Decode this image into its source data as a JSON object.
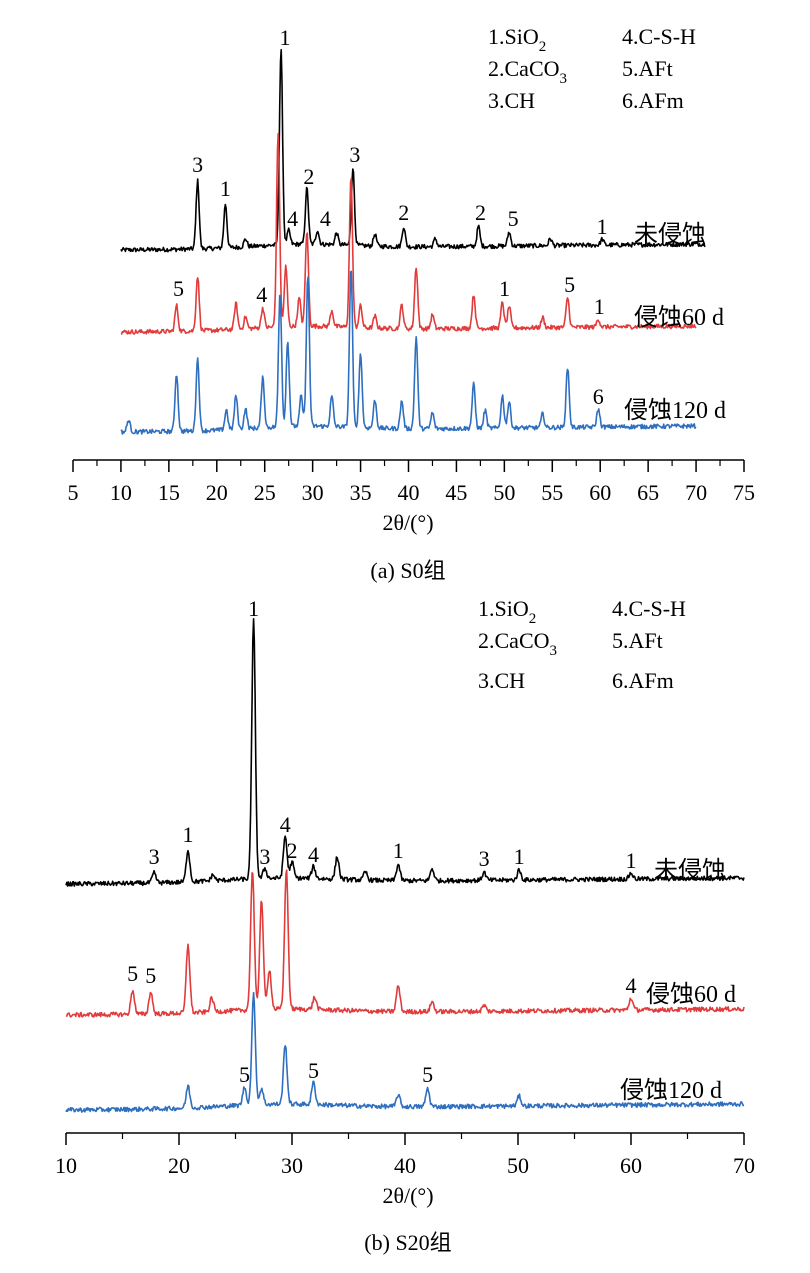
{
  "chart_data": [
    {
      "type": "line",
      "caption": "(a) S0组",
      "xlabel": "2θ/(°)",
      "xlim": [
        5,
        75
      ],
      "xticks": [
        5,
        10,
        15,
        20,
        25,
        30,
        35,
        40,
        45,
        50,
        55,
        60,
        65,
        70,
        75
      ],
      "legend": [
        "1.SiO2",
        "2.CaCO3",
        "3.CH",
        "4.C-S-H",
        "5.AFt",
        "6.AFm"
      ],
      "series": [
        {
          "name": "未侵蚀",
          "color": "#000000",
          "x_range": [
            10,
            71
          ],
          "peaks": [
            {
              "x": 18.0,
              "h": 68,
              "label": "3"
            },
            {
              "x": 20.9,
              "h": 44,
              "label": "1"
            },
            {
              "x": 23.0,
              "h": 8
            },
            {
              "x": 26.7,
              "h": 195,
              "label": "1"
            },
            {
              "x": 27.5,
              "h": 14,
              "label": "4"
            },
            {
              "x": 29.4,
              "h": 56,
              "label": "2"
            },
            {
              "x": 30.5,
              "h": 14,
              "label": "4"
            },
            {
              "x": 32.5,
              "h": 12
            },
            {
              "x": 34.2,
              "h": 78,
              "label": "3"
            },
            {
              "x": 36.5,
              "h": 12
            },
            {
              "x": 39.5,
              "h": 20,
              "label": "2"
            },
            {
              "x": 42.8,
              "h": 8
            },
            {
              "x": 47.3,
              "h": 20,
              "label": "2"
            },
            {
              "x": 50.5,
              "h": 14,
              "label": "5"
            },
            {
              "x": 54.8,
              "h": 7
            },
            {
              "x": 60.2,
              "h": 6,
              "label": "1"
            }
          ]
        },
        {
          "name": "侵蚀60 d",
          "color": "#e03c3c",
          "x_range": [
            10,
            70
          ],
          "peaks": [
            {
              "x": 15.8,
              "h": 26,
              "label": "5"
            },
            {
              "x": 18.0,
              "h": 55
            },
            {
              "x": 22.0,
              "h": 26
            },
            {
              "x": 23.0,
              "h": 12
            },
            {
              "x": 24.8,
              "h": 20,
              "label": "4"
            },
            {
              "x": 26.4,
              "h": 195
            },
            {
              "x": 27.2,
              "h": 60
            },
            {
              "x": 28.6,
              "h": 28
            },
            {
              "x": 29.4,
              "h": 95
            },
            {
              "x": 32.0,
              "h": 16
            },
            {
              "x": 34.0,
              "h": 150
            },
            {
              "x": 35.0,
              "h": 22
            },
            {
              "x": 36.5,
              "h": 12
            },
            {
              "x": 39.3,
              "h": 24
            },
            {
              "x": 40.8,
              "h": 62
            },
            {
              "x": 42.5,
              "h": 14
            },
            {
              "x": 46.8,
              "h": 34
            },
            {
              "x": 49.8,
              "h": 26,
              "label": "1"
            },
            {
              "x": 50.5,
              "h": 22
            },
            {
              "x": 54.0,
              "h": 10
            },
            {
              "x": 56.6,
              "h": 30,
              "label": "5"
            },
            {
              "x": 59.8,
              "h": 8,
              "label": "1"
            }
          ]
        },
        {
          "name": "侵蚀120 d",
          "color": "#2f6fbf",
          "x_range": [
            10,
            70
          ],
          "peaks": [
            {
              "x": 10.8,
              "h": 12
            },
            {
              "x": 15.8,
              "h": 58
            },
            {
              "x": 18.0,
              "h": 72
            },
            {
              "x": 21.0,
              "h": 20
            },
            {
              "x": 22.0,
              "h": 34
            },
            {
              "x": 23.0,
              "h": 20
            },
            {
              "x": 24.8,
              "h": 50
            },
            {
              "x": 26.6,
              "h": 135
            },
            {
              "x": 27.4,
              "h": 85
            },
            {
              "x": 28.8,
              "h": 30
            },
            {
              "x": 29.5,
              "h": 150
            },
            {
              "x": 32.0,
              "h": 30
            },
            {
              "x": 34.0,
              "h": 160
            },
            {
              "x": 35.0,
              "h": 75
            },
            {
              "x": 36.5,
              "h": 28
            },
            {
              "x": 39.3,
              "h": 28
            },
            {
              "x": 40.8,
              "h": 92
            },
            {
              "x": 42.5,
              "h": 16
            },
            {
              "x": 46.8,
              "h": 44
            },
            {
              "x": 48.0,
              "h": 18
            },
            {
              "x": 49.8,
              "h": 32
            },
            {
              "x": 50.5,
              "h": 26
            },
            {
              "x": 54.0,
              "h": 14
            },
            {
              "x": 56.6,
              "h": 60
            },
            {
              "x": 59.8,
              "h": 18,
              "label": "6"
            }
          ]
        }
      ]
    },
    {
      "type": "line",
      "caption": "(b) S20组",
      "xlabel": "2θ/(°)",
      "xlim": [
        10,
        70
      ],
      "xticks": [
        10,
        20,
        30,
        40,
        50,
        60,
        70
      ],
      "legend": [
        "1.SiO2",
        "2.CaCO3",
        "3.CH",
        "4.C-S-H",
        "5.AFt",
        "6.AFm"
      ],
      "series": [
        {
          "name": "未侵蚀",
          "color": "#000000",
          "x_range": [
            10,
            70
          ],
          "peaks": [
            {
              "x": 17.8,
              "h": 10,
              "label": "3"
            },
            {
              "x": 20.8,
              "h": 32,
              "label": "1"
            },
            {
              "x": 23.0,
              "h": 6
            },
            {
              "x": 26.6,
              "h": 258,
              "label": "1"
            },
            {
              "x": 27.6,
              "h": 10,
              "label": "3"
            },
            {
              "x": 29.4,
              "h": 42,
              "label": "4"
            },
            {
              "x": 30.0,
              "h": 16,
              "label": "2"
            },
            {
              "x": 31.9,
              "h": 12,
              "label": "4"
            },
            {
              "x": 34.0,
              "h": 22
            },
            {
              "x": 36.5,
              "h": 8
            },
            {
              "x": 39.4,
              "h": 16,
              "label": "1"
            },
            {
              "x": 42.4,
              "h": 12
            },
            {
              "x": 47.0,
              "h": 8,
              "label": "3"
            },
            {
              "x": 50.1,
              "h": 10,
              "label": "1"
            },
            {
              "x": 60.0,
              "h": 6,
              "label": "1"
            }
          ]
        },
        {
          "name": "侵蚀60 d",
          "color": "#e03c3c",
          "x_range": [
            10,
            70
          ],
          "peaks": [
            {
              "x": 15.9,
              "h": 24,
              "label": "5"
            },
            {
              "x": 17.5,
              "h": 22,
              "label": "5"
            },
            {
              "x": 20.8,
              "h": 68
            },
            {
              "x": 22.9,
              "h": 14
            },
            {
              "x": 26.5,
              "h": 140
            },
            {
              "x": 27.3,
              "h": 110
            },
            {
              "x": 28.0,
              "h": 40
            },
            {
              "x": 29.5,
              "h": 140
            },
            {
              "x": 32.0,
              "h": 12
            },
            {
              "x": 39.4,
              "h": 26
            },
            {
              "x": 42.4,
              "h": 10
            },
            {
              "x": 47.0,
              "h": 6
            },
            {
              "x": 60.0,
              "h": 12,
              "label": "4"
            }
          ]
        },
        {
          "name": "侵蚀120 d",
          "color": "#2f6fbf",
          "x_range": [
            10,
            70
          ],
          "peaks": [
            {
              "x": 20.8,
              "h": 22
            },
            {
              "x": 25.8,
              "h": 18,
              "label": "5"
            },
            {
              "x": 26.6,
              "h": 110
            },
            {
              "x": 27.3,
              "h": 16
            },
            {
              "x": 29.4,
              "h": 60
            },
            {
              "x": 31.9,
              "h": 22,
              "label": "5"
            },
            {
              "x": 39.4,
              "h": 12
            },
            {
              "x": 42.0,
              "h": 18,
              "label": "5"
            },
            {
              "x": 50.1,
              "h": 10
            }
          ]
        }
      ]
    }
  ]
}
